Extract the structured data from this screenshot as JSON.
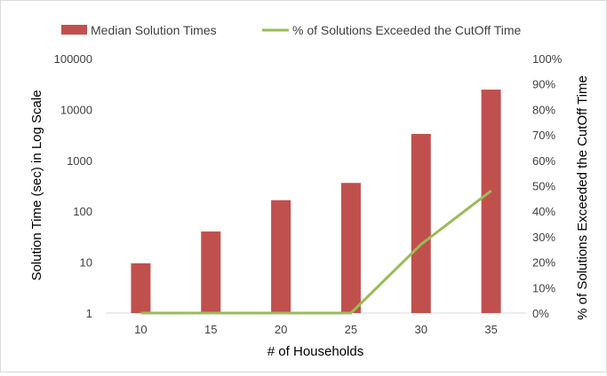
{
  "chart_data": {
    "type": "bar",
    "categories": [
      "10",
      "15",
      "20",
      "25",
      "30",
      "35"
    ],
    "series": [
      {
        "name": "Median Solution Times",
        "kind": "bar",
        "axis": "left",
        "color": "#c0504d",
        "values": [
          9.5,
          40,
          165,
          360,
          3300,
          24500
        ]
      },
      {
        "name": "% of Solutions Exceeded the CutOff Time",
        "kind": "line",
        "axis": "right",
        "color": "#9bbb59",
        "values": [
          0,
          0,
          0,
          0,
          27,
          48
        ]
      }
    ],
    "xlabel": "# of Households",
    "ylabel": "Solution Time (sec) in Log Scale",
    "y2label": "% of Solutions Exceeded the CutOff Time",
    "yscale": "log",
    "ylim": [
      1,
      100000
    ],
    "y2lim": [
      0,
      100
    ],
    "y_ticks": [
      "1",
      "10",
      "100",
      "1000",
      "10000",
      "100000"
    ],
    "y2_ticks": [
      "0%",
      "10%",
      "20%",
      "30%",
      "40%",
      "50%",
      "60%",
      "70%",
      "80%",
      "90%",
      "100%"
    ],
    "grid": false,
    "legend": "top-center"
  }
}
